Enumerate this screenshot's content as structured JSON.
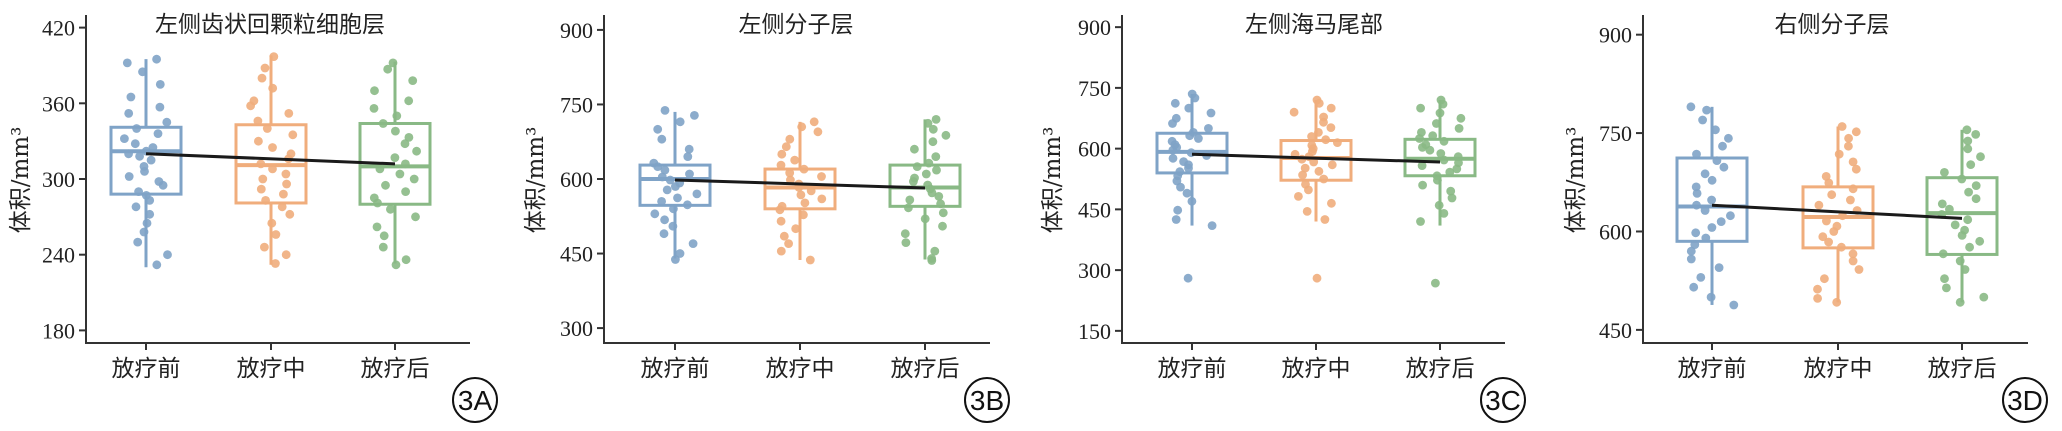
{
  "colors": {
    "before": "#7fa3c7",
    "during": "#f0ad7c",
    "after": "#89b985",
    "trend": "#1a1a1a",
    "axis": "#333333"
  },
  "chart_data": [
    {
      "type": "box",
      "id": "3A",
      "badge": "3A",
      "title": "左侧齿状回颗粒细胞层",
      "ylabel": "体积/mm³",
      "categories": [
        "放疗前",
        "放疗中",
        "放疗后"
      ],
      "ylim": [
        170,
        430
      ],
      "yticks": [
        180,
        240,
        300,
        360,
        420
      ],
      "boxes": [
        {
          "q1": 288,
          "median": 322,
          "q3": 341,
          "whisker_low": 230,
          "whisker_high": 395
        },
        {
          "q1": 281,
          "median": 311,
          "q3": 343,
          "whisker_low": 232,
          "whisker_high": 398
        },
        {
          "q1": 280,
          "median": 310,
          "q3": 344,
          "whisker_low": 233,
          "whisker_high": 393
        }
      ],
      "trend": [
        320,
        312
      ],
      "points": [
        [
          395,
          392,
          385,
          375,
          365,
          357,
          352,
          345,
          340,
          336,
          332,
          328,
          325,
          322,
          320,
          318,
          315,
          310,
          306,
          302,
          298,
          295,
          290,
          287,
          283,
          278,
          272,
          265,
          258,
          250,
          240,
          232
        ],
        [
          397,
          388,
          380,
          372,
          362,
          358,
          352,
          346,
          340,
          335,
          330,
          325,
          320,
          316,
          312,
          308,
          304,
          300,
          296,
          292,
          288,
          283,
          278,
          272,
          265,
          256,
          246,
          240,
          233
        ],
        [
          392,
          387,
          378,
          370,
          362,
          356,
          350,
          344,
          338,
          333,
          328,
          322,
          317,
          312,
          308,
          304,
          300,
          295,
          290,
          285,
          281,
          276,
          270,
          262,
          255,
          246,
          236,
          232
        ]
      ]
    },
    {
      "type": "box",
      "id": "3B",
      "badge": "3B",
      "title": "左侧分子层",
      "ylabel": "体积/mm³",
      "categories": [
        "放疗前",
        "放疗中",
        "放疗后"
      ],
      "ylim": [
        270,
        930
      ],
      "yticks": [
        300,
        450,
        600,
        750,
        900
      ],
      "boxes": [
        {
          "q1": 547,
          "median": 600,
          "q3": 628,
          "whisker_low": 440,
          "whisker_high": 735
        },
        {
          "q1": 540,
          "median": 583,
          "q3": 620,
          "whisker_low": 437,
          "whisker_high": 715
        },
        {
          "q1": 545,
          "median": 583,
          "q3": 628,
          "whisker_low": 438,
          "whisker_high": 720
        }
      ],
      "trend": [
        598,
        582
      ],
      "points": [
        [
          738,
          728,
          715,
          700,
          680,
          660,
          645,
          632,
          625,
          618,
          610,
          604,
          598,
          592,
          585,
          578,
          570,
          562,
          555,
          548,
          540,
          530,
          518,
          505,
          490,
          470,
          450,
          438
        ],
        [
          715,
          705,
          695,
          680,
          665,
          650,
          638,
          628,
          620,
          612,
          605,
          598,
          590,
          583,
          576,
          568,
          560,
          552,
          545,
          538,
          528,
          515,
          500,
          485,
          470,
          455,
          437
        ],
        [
          720,
          712,
          700,
          688,
          675,
          660,
          645,
          632,
          625,
          618,
          610,
          602,
          595,
          588,
          580,
          572,
          565,
          558,
          550,
          542,
          532,
          520,
          505,
          490,
          472,
          455,
          440,
          436
        ]
      ]
    },
    {
      "type": "box",
      "id": "3C",
      "badge": "3C",
      "title": "左侧海马尾部",
      "ylabel": "体积/mm³",
      "categories": [
        "放疗前",
        "放疗中",
        "放疗后"
      ],
      "ylim": [
        120,
        930
      ],
      "yticks": [
        150,
        300,
        450,
        600,
        750,
        900
      ],
      "boxes": [
        {
          "q1": 540,
          "median": 592,
          "q3": 638,
          "whisker_low": 410,
          "whisker_high": 735
        },
        {
          "q1": 522,
          "median": 577,
          "q3": 620,
          "whisker_low": 420,
          "whisker_high": 720
        },
        {
          "q1": 533,
          "median": 575,
          "q3": 623,
          "whisker_low": 410,
          "whisker_high": 720
        }
      ],
      "trend": [
        586,
        567
      ],
      "points": [
        [
          735,
          725,
          712,
          700,
          688,
          675,
          662,
          650,
          640,
          632,
          625,
          618,
          610,
          603,
          596,
          590,
          583,
          576,
          568,
          560,
          552,
          543,
          533,
          520,
          505,
          490,
          470,
          448,
          425,
          410,
          280
        ],
        [
          720,
          712,
          700,
          690,
          678,
          665,
          652,
          640,
          630,
          622,
          615,
          608,
          600,
          593,
          586,
          580,
          574,
          567,
          560,
          552,
          544,
          535,
          525,
          512,
          498,
          482,
          465,
          445,
          425,
          280
        ],
        [
          720,
          710,
          700,
          688,
          675,
          662,
          650,
          640,
          632,
          625,
          618,
          610,
          603,
          596,
          588,
          580,
          572,
          565,
          558,
          550,
          542,
          533,
          522,
          510,
          495,
          478,
          460,
          440,
          420,
          268
        ]
      ]
    },
    {
      "type": "box",
      "id": "3D",
      "badge": "3D",
      "title": "右侧分子层",
      "ylabel": "体积/mm³",
      "categories": [
        "放疗前",
        "放疗中",
        "放疗后"
      ],
      "ylim": [
        430,
        930
      ],
      "yticks": [
        450,
        600,
        750,
        900
      ],
      "boxes": [
        {
          "q1": 585,
          "median": 638,
          "q3": 712,
          "whisker_low": 488,
          "whisker_high": 790
        },
        {
          "q1": 575,
          "median": 622,
          "q3": 668,
          "whisker_low": 492,
          "whisker_high": 760
        },
        {
          "q1": 565,
          "median": 628,
          "q3": 682,
          "whisker_low": 492,
          "whisker_high": 755
        }
      ],
      "trend": [
        640,
        620
      ],
      "points": [
        [
          790,
          785,
          770,
          755,
          742,
          730,
          718,
          708,
          698,
          688,
          678,
          668,
          658,
          648,
          640,
          632,
          624,
          615,
          606,
          598,
          590,
          580,
          570,
          558,
          545,
          530,
          515,
          500,
          488
        ],
        [
          760,
          752,
          742,
          730,
          718,
          706,
          695,
          684,
          674,
          665,
          656,
          648,
          640,
          632,
          624,
          616,
          608,
          600,
          592,
          584,
          576,
          566,
          555,
          542,
          528,
          512,
          498,
          492
        ],
        [
          755,
          748,
          738,
          726,
          714,
          702,
          690,
          680,
          670,
          660,
          650,
          642,
          634,
          626,
          618,
          610,
          602,
          594,
          585,
          576,
          566,
          555,
          542,
          528,
          514,
          500,
          492
        ]
      ]
    }
  ]
}
